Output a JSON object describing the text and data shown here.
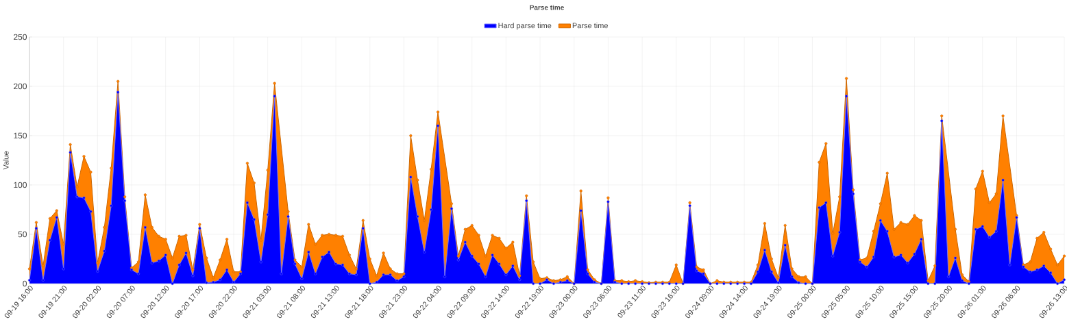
{
  "chart_data": {
    "type": "area",
    "title": "Parse time",
    "ylabel": "Value",
    "categories": [
      "09-19 16:00",
      null,
      null,
      null,
      null,
      "09-19 21:00",
      null,
      null,
      null,
      null,
      "09-20 02:00",
      null,
      null,
      null,
      null,
      "09-20 07:00",
      null,
      null,
      null,
      null,
      "09-20 12:00",
      null,
      null,
      null,
      null,
      "09-20 17:00",
      null,
      null,
      null,
      null,
      "09-20 22:00",
      null,
      null,
      null,
      null,
      "09-21 03:00",
      null,
      null,
      null,
      null,
      "09-21 08:00",
      null,
      null,
      null,
      null,
      "09-21 13:00",
      null,
      null,
      null,
      null,
      "09-21 18:00",
      null,
      null,
      null,
      null,
      "09-21 23:00",
      null,
      null,
      null,
      null,
      "09-22 04:00",
      null,
      null,
      null,
      null,
      "09-22 09:00",
      null,
      null,
      null,
      null,
      "09-22 14:00",
      null,
      null,
      null,
      null,
      "09-22 19:00",
      null,
      null,
      null,
      null,
      "09-23 00:00",
      null,
      null,
      null,
      null,
      "09-23 06:00",
      null,
      null,
      null,
      null,
      "09-23 11:00",
      null,
      null,
      null,
      null,
      "09-23 16:00",
      null,
      null,
      null,
      null,
      "09-24 09:00",
      null,
      null,
      null,
      null,
      "09-24 14:00",
      null,
      null,
      null,
      null,
      "09-24 19:00",
      null,
      null,
      null,
      null,
      "09-25 00:00",
      null,
      null,
      null,
      null,
      "09-25 05:00",
      null,
      null,
      null,
      null,
      "09-25 10:00",
      null,
      null,
      null,
      null,
      "09-25 15:00",
      null,
      null,
      null,
      null,
      "09-25 20:00",
      null,
      null,
      null,
      null,
      "09-26 01:00",
      null,
      null,
      null,
      null,
      "09-26 06:00",
      null,
      null,
      null,
      null,
      null,
      null,
      "09-26 13:00"
    ],
    "series": [
      {
        "name": "Hard parse time",
        "color": "#0000ff",
        "values": [
          3.5,
          56,
          3.5,
          44,
          67,
          15,
          133,
          88,
          87,
          73,
          12.5,
          33,
          79,
          194,
          84,
          14,
          10,
          57,
          21,
          23,
          29,
          0,
          19,
          31,
          8,
          56,
          1,
          1.5,
          4,
          14,
          1.5,
          10,
          82,
          65,
          22,
          70,
          190,
          10,
          68,
          20,
          5,
          32,
          10,
          27,
          32,
          20,
          19,
          10,
          9,
          56,
          0,
          1.5,
          9,
          9,
          3,
          7,
          108,
          68,
          32,
          75,
          160,
          7,
          76,
          24,
          42,
          28,
          20,
          7,
          29,
          20,
          9,
          18,
          4,
          84,
          0,
          0,
          4,
          0,
          1.5,
          3,
          0,
          74,
          10,
          1.5,
          0,
          83,
          1.5,
          0,
          0,
          0,
          0,
          0,
          0,
          0,
          0,
          0,
          0,
          79,
          13,
          10,
          0,
          0,
          0,
          0,
          0,
          0,
          0,
          12,
          34,
          12,
          1,
          39,
          7,
          1,
          0,
          0,
          77,
          82,
          28,
          52,
          190,
          91,
          22,
          17,
          27,
          64,
          53,
          27,
          29,
          21,
          30,
          45,
          0,
          0,
          165,
          7,
          26,
          3,
          0,
          55,
          58,
          47,
          53,
          105,
          19,
          67,
          17,
          12,
          14,
          18,
          11,
          0,
          4
        ]
      },
      {
        "name": "Parse time",
        "color": "#ff8000",
        "values": [
          15,
          62,
          18,
          66,
          74,
          40,
          141,
          98,
          129,
          113,
          21,
          57,
          117,
          205,
          88,
          16,
          22,
          90,
          57,
          48,
          45,
          26,
          48,
          49,
          14,
          60,
          26,
          6,
          24,
          45,
          12,
          12,
          122,
          102,
          44,
          115,
          203,
          null,
          73,
          24,
          17,
          60,
          40,
          49,
          50,
          49,
          48,
          29,
          15,
          64,
          25,
          8,
          31,
          15,
          10,
          10,
          150,
          105,
          64,
          116,
          174,
          null,
          81,
          28,
          55,
          59,
          49,
          28,
          49,
          46,
          36,
          42,
          8,
          89,
          22,
          5,
          6,
          3,
          4,
          7,
          0,
          94,
          14,
          4,
          0,
          87,
          3,
          3,
          2,
          3,
          2,
          1,
          1.5,
          1.5,
          1.5,
          19,
          0,
          82,
          17,
          14,
          0,
          3,
          1.5,
          1.5,
          1.5,
          1.5,
          1.5,
          19,
          61,
          25,
          6,
          59,
          15,
          7,
          7,
          0,
          123,
          142,
          51,
          88,
          208,
          95,
          24,
          26,
          53,
          81,
          112,
          55,
          62,
          60,
          69,
          64,
          3,
          18,
          170,
          null,
          55,
          9,
          2,
          96,
          114,
          82,
          91,
          170,
          null,
          69,
          19,
          22,
          46,
          52,
          35,
          19,
          28
        ]
      }
    ],
    "ylim": [
      0,
      250
    ],
    "yticks": [
      0,
      50,
      100,
      150,
      200,
      250
    ],
    "grid": true,
    "legend": "top",
    "marker": "circle"
  }
}
